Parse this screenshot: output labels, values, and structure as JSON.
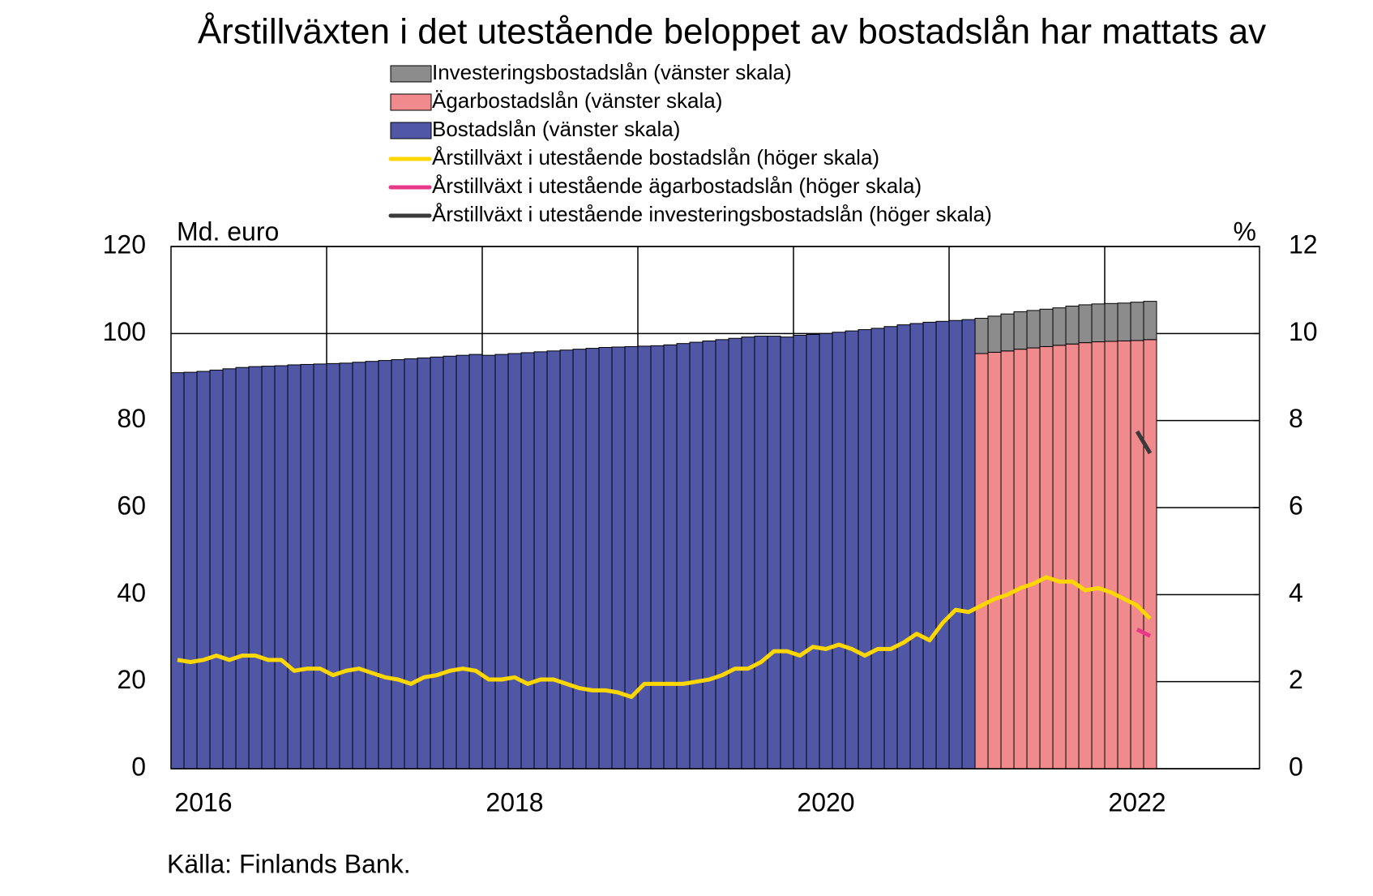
{
  "chart_data": {
    "type": "bar",
    "title": "Årstillväxten i det utestående beloppet av bostadslån har mattats av",
    "y_label": "Md. euro",
    "y2_label": "%",
    "source": "Källa: Finlands Bank.",
    "categories": [
      null,
      null,
      "2016",
      null,
      null,
      null,
      null,
      null,
      null,
      null,
      null,
      null,
      null,
      null,
      null,
      null,
      null,
      null,
      null,
      null,
      null,
      null,
      null,
      null,
      null,
      null,
      "2018",
      null,
      null,
      null,
      null,
      null,
      null,
      null,
      null,
      null,
      null,
      null,
      null,
      null,
      null,
      null,
      null,
      null,
      null,
      null,
      null,
      null,
      null,
      null,
      "2020",
      null,
      null,
      null,
      null,
      null,
      null,
      null,
      null,
      null,
      null,
      null,
      null,
      null,
      null,
      null,
      null,
      null,
      null,
      null,
      null,
      null,
      null,
      null,
      "2022",
      null
    ],
    "ylim": [
      0,
      120
    ],
    "yticks": [
      0,
      20,
      40,
      60,
      80,
      100,
      120
    ],
    "y2lim": [
      0,
      12
    ],
    "y2ticks": [
      0,
      2,
      4,
      6,
      8,
      10,
      12
    ],
    "grid": true,
    "series": [
      {
        "name": "Investeringsbostadslån (vänster skala)",
        "type": "bar",
        "color": "#8c8c8c",
        "values": [
          null,
          null,
          null,
          null,
          null,
          null,
          null,
          null,
          null,
          null,
          null,
          null,
          null,
          null,
          null,
          null,
          null,
          null,
          null,
          null,
          null,
          null,
          null,
          null,
          null,
          null,
          null,
          null,
          null,
          null,
          null,
          null,
          null,
          null,
          null,
          null,
          null,
          null,
          null,
          null,
          null,
          null,
          null,
          null,
          null,
          null,
          null,
          null,
          null,
          null,
          null,
          null,
          null,
          null,
          null,
          null,
          null,
          null,
          null,
          null,
          null,
          null,
          8.1,
          8.3,
          8.5,
          8.6,
          8.6,
          8.6,
          8.6,
          8.7,
          8.7,
          8.7,
          8.7,
          8.7,
          8.8,
          8.8
        ]
      },
      {
        "name": "Ägarbostadslån (vänster skala)",
        "type": "bar",
        "color": "#f08a8c",
        "values": [
          null,
          null,
          null,
          null,
          null,
          null,
          null,
          null,
          null,
          null,
          null,
          null,
          null,
          null,
          null,
          null,
          null,
          null,
          null,
          null,
          null,
          null,
          null,
          null,
          null,
          null,
          null,
          null,
          null,
          null,
          null,
          null,
          null,
          null,
          null,
          null,
          null,
          null,
          null,
          null,
          null,
          null,
          null,
          null,
          null,
          null,
          null,
          null,
          null,
          null,
          null,
          null,
          null,
          null,
          null,
          null,
          null,
          null,
          null,
          null,
          null,
          null,
          95.4,
          95.7,
          96.0,
          96.4,
          96.7,
          97.0,
          97.3,
          97.6,
          97.9,
          98.1,
          98.2,
          98.3,
          98.4,
          98.6
        ]
      },
      {
        "name": "Bostadslån (vänster skala)",
        "type": "bar",
        "color": "#4f57a6",
        "values": [
          91.0,
          91.1,
          91.3,
          91.6,
          91.9,
          92.2,
          92.4,
          92.5,
          92.6,
          92.8,
          92.9,
          93.0,
          93.1,
          93.2,
          93.4,
          93.6,
          93.8,
          94.0,
          94.2,
          94.4,
          94.6,
          94.8,
          95.0,
          95.2,
          95.0,
          95.2,
          95.4,
          95.6,
          95.8,
          96.0,
          96.2,
          96.4,
          96.6,
          96.8,
          96.9,
          97.0,
          97.1,
          97.2,
          97.4,
          97.7,
          98.0,
          98.3,
          98.6,
          98.9,
          99.2,
          99.4,
          99.4,
          99.2,
          99.6,
          99.8,
          100.0,
          100.3,
          100.6,
          100.9,
          101.2,
          101.6,
          102.0,
          102.3,
          102.6,
          102.8,
          103.0,
          103.2,
          null,
          null,
          null,
          null,
          null,
          null,
          null,
          null,
          null,
          null,
          null,
          null,
          null,
          null
        ]
      },
      {
        "name": "Årstillväxt i utestående bostadslån (höger skala)",
        "type": "line",
        "axis": "y2",
        "color": "#ffd700",
        "values": [
          2.5,
          2.45,
          2.5,
          2.6,
          2.5,
          2.6,
          2.6,
          2.5,
          2.5,
          2.25,
          2.3,
          2.3,
          2.15,
          2.25,
          2.3,
          2.2,
          2.1,
          2.05,
          1.95,
          2.1,
          2.15,
          2.25,
          2.3,
          2.25,
          2.05,
          2.05,
          2.1,
          1.95,
          2.05,
          2.05,
          1.95,
          1.85,
          1.8,
          1.8,
          1.75,
          1.65,
          1.95,
          1.95,
          1.95,
          1.95,
          2.0,
          2.05,
          2.15,
          2.3,
          2.3,
          2.45,
          2.7,
          2.7,
          2.6,
          2.8,
          2.75,
          2.85,
          2.75,
          2.6,
          2.75,
          2.75,
          2.9,
          3.1,
          2.95,
          3.35,
          3.65,
          3.6,
          3.75,
          3.9,
          4.0,
          4.15,
          4.25,
          4.4,
          4.3,
          4.3,
          4.1,
          4.15,
          4.05,
          3.9,
          3.75,
          3.45
        ]
      },
      {
        "name": "Årstillväxt i utestående ägarbostadslån (höger skala)",
        "type": "line",
        "axis": "y2",
        "color": "#e8388a",
        "values": [
          null,
          null,
          null,
          null,
          null,
          null,
          null,
          null,
          null,
          null,
          null,
          null,
          null,
          null,
          null,
          null,
          null,
          null,
          null,
          null,
          null,
          null,
          null,
          null,
          null,
          null,
          null,
          null,
          null,
          null,
          null,
          null,
          null,
          null,
          null,
          null,
          null,
          null,
          null,
          null,
          null,
          null,
          null,
          null,
          null,
          null,
          null,
          null,
          null,
          null,
          null,
          null,
          null,
          null,
          null,
          null,
          null,
          null,
          null,
          null,
          null,
          null,
          null,
          null,
          null,
          null,
          null,
          null,
          null,
          null,
          null,
          null,
          null,
          null,
          3.2,
          3.05
        ]
      },
      {
        "name": "Årstillväxt i utestående investeringsbostadslån (höger skala)",
        "type": "line",
        "axis": "y2",
        "color": "#3a3a3a",
        "values": [
          null,
          null,
          null,
          null,
          null,
          null,
          null,
          null,
          null,
          null,
          null,
          null,
          null,
          null,
          null,
          null,
          null,
          null,
          null,
          null,
          null,
          null,
          null,
          null,
          null,
          null,
          null,
          null,
          null,
          null,
          null,
          null,
          null,
          null,
          null,
          null,
          null,
          null,
          null,
          null,
          null,
          null,
          null,
          null,
          null,
          null,
          null,
          null,
          null,
          null,
          null,
          null,
          null,
          null,
          null,
          null,
          null,
          null,
          null,
          null,
          null,
          null,
          null,
          null,
          null,
          null,
          null,
          null,
          null,
          null,
          null,
          null,
          null,
          null,
          7.75,
          7.25
        ]
      }
    ]
  }
}
